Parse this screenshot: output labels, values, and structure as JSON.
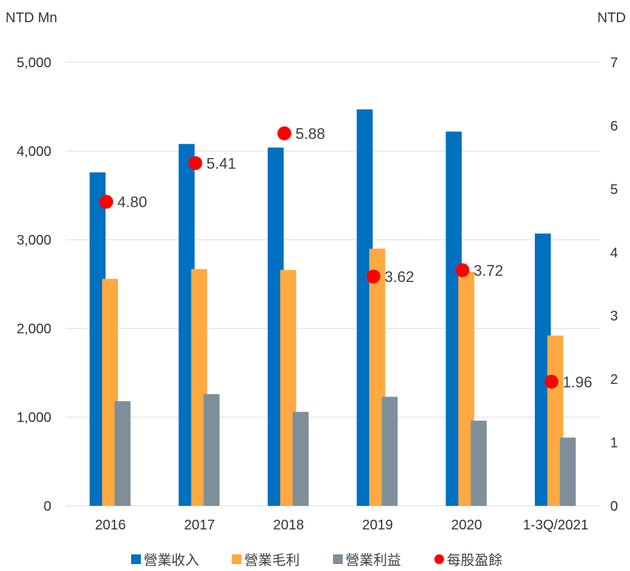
{
  "chart_data": {
    "type": "bar",
    "left_axis_unit": "NTD Mn",
    "right_axis_unit": "NTD",
    "categories": [
      "2016",
      "2017",
      "2018",
      "2019",
      "2020",
      "1-3Q/2021"
    ],
    "left_ylim": [
      0,
      5000
    ],
    "left_ticks": [
      "0",
      "1,000",
      "2,000",
      "3,000",
      "4,000",
      "5,000"
    ],
    "right_ylim": [
      0,
      7
    ],
    "right_ticks": [
      "0",
      "1",
      "2",
      "3",
      "4",
      "5",
      "6",
      "7"
    ],
    "grid": true,
    "legend_position": "bottom",
    "series": [
      {
        "name": "營業收入",
        "type": "bar",
        "axis": "left",
        "color": "#0070C0",
        "values": [
          3760,
          4080,
          4040,
          4470,
          4220,
          3070
        ]
      },
      {
        "name": "營業毛利",
        "type": "bar",
        "axis": "left",
        "color": "#FFA940",
        "values": [
          2560,
          2670,
          2660,
          2900,
          2640,
          1920
        ]
      },
      {
        "name": "營業利益",
        "type": "bar",
        "axis": "left",
        "color": "#7F8F99",
        "values": [
          1180,
          1260,
          1060,
          1230,
          960,
          770
        ]
      },
      {
        "name": "每股盈餘",
        "type": "scatter",
        "axis": "right",
        "color": "#FF0000",
        "values": [
          4.8,
          5.41,
          5.88,
          3.62,
          3.72,
          1.96
        ],
        "labels": [
          "4.80",
          "5.41",
          "5.88",
          "3.62",
          "3.72",
          "1.96"
        ]
      }
    ]
  }
}
